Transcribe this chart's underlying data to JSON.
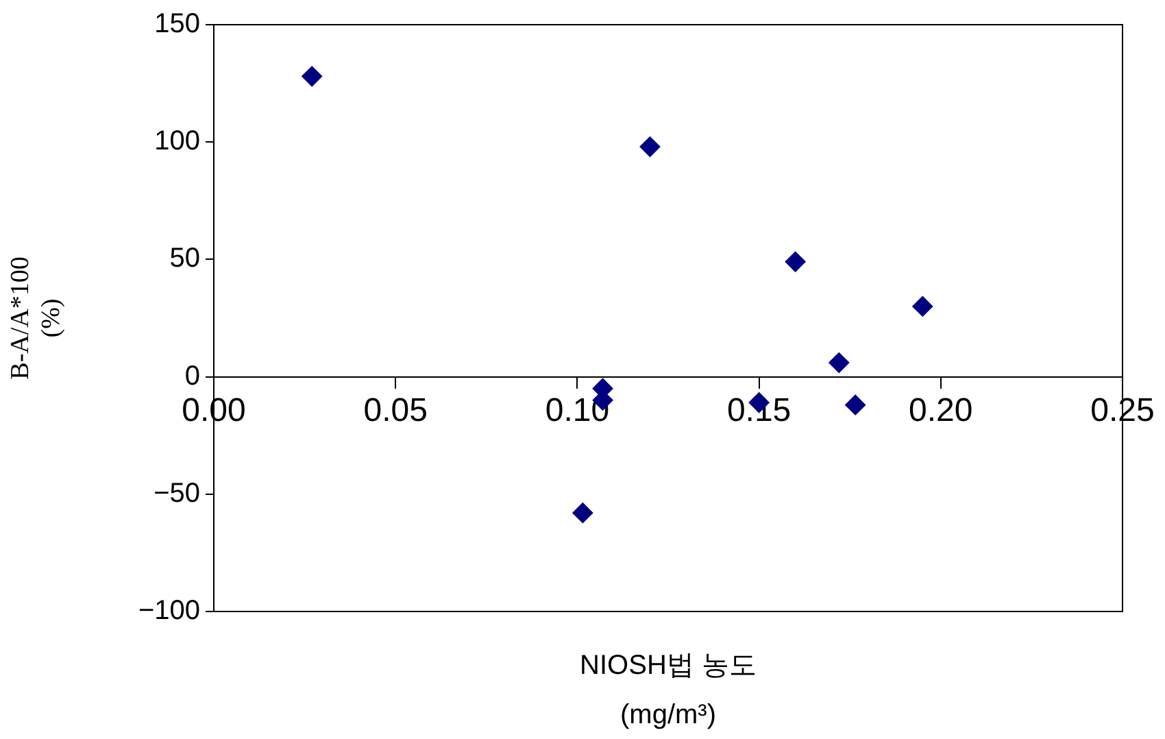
{
  "chart_data": {
    "type": "scatter",
    "xlabel": "NIOSH법 농도\n(mg/m³)",
    "ylabel": "B-A/A*100\n(%)",
    "marker": "diamond",
    "grid": false,
    "legend": false,
    "x": [
      0.027,
      0.12,
      0.16,
      0.195,
      0.172,
      0.1765,
      0.15,
      0.107,
      0.107,
      0.1015
    ],
    "series": [
      {
        "color": "#000080",
        "values": [
          128,
          98,
          49,
          30,
          6,
          -12,
          -11,
          -5,
          -10,
          -58
        ]
      }
    ],
    "xlim": [
      0,
      0.25
    ],
    "xticks": [
      {
        "value": 0,
        "label": "0.00"
      },
      {
        "value": 0.05,
        "label": "0.05"
      },
      {
        "value": 0.1,
        "label": "0.10"
      },
      {
        "value": 0.15,
        "label": "0.15"
      },
      {
        "value": 0.2,
        "label": "0.20"
      },
      {
        "value": 0.25,
        "label": "0.25"
      }
    ],
    "ylim": [
      -100,
      150
    ],
    "yticks": [
      {
        "value": -100,
        "label": "−100"
      },
      {
        "value": -50,
        "label": "−50"
      },
      0,
      50,
      100,
      150
    ]
  }
}
